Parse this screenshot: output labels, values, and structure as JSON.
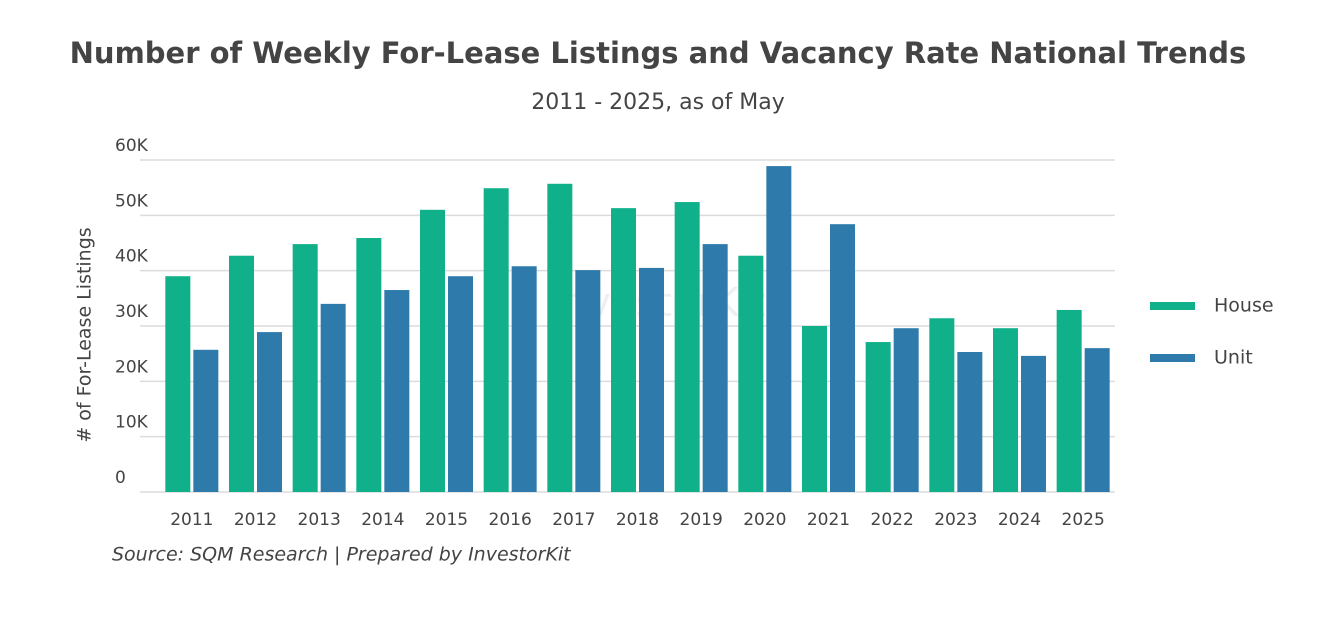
{
  "chart_data": {
    "type": "bar",
    "title": "Number of Weekly For-Lease Listings and Vacancy Rate National Trends",
    "subtitle": "2011 - 2025, as of May",
    "y_label": "# of For-Lease Listings",
    "source": "Source: SQM Research | Prepared by InvestorKit",
    "watermark": "InvestorKit",
    "categories": [
      "2011",
      "2012",
      "2013",
      "2014",
      "2015",
      "2016",
      "2017",
      "2018",
      "2019",
      "2020",
      "2021",
      "2022",
      "2023",
      "2024",
      "2025"
    ],
    "series": [
      {
        "name": "House",
        "color": "#10b08a",
        "values": [
          39000,
          42700,
          44800,
          45900,
          51000,
          54900,
          55700,
          51300,
          52400,
          42700,
          30000,
          27100,
          31400,
          29600,
          32900
        ]
      },
      {
        "name": "Unit",
        "color": "#2e7bab",
        "values": [
          25700,
          28900,
          34000,
          36500,
          39000,
          40800,
          40100,
          40500,
          44800,
          58900,
          48400,
          29600,
          25300,
          24600,
          26000
        ]
      }
    ],
    "ylim": [
      0,
      60000
    ],
    "yticks": [
      0,
      {
        "value": 10000,
        "label": "10K"
      },
      {
        "value": 20000,
        "label": "20K"
      },
      {
        "value": 30000,
        "label": "30K"
      },
      {
        "value": 40000,
        "label": "40K"
      },
      {
        "value": 50000,
        "label": "50K"
      },
      {
        "value": 60000,
        "label": "60K"
      }
    ],
    "grid": true,
    "legend": "right"
  }
}
